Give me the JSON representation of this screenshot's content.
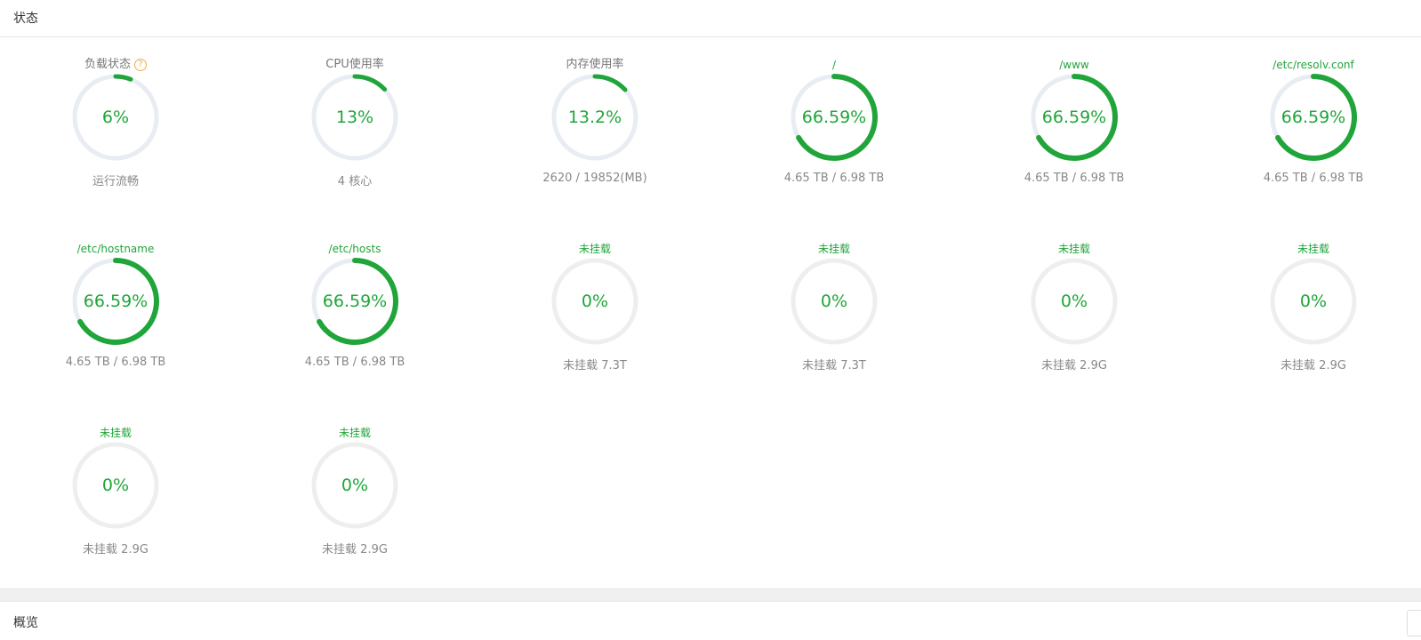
{
  "header": {
    "title": "状态"
  },
  "colors": {
    "accent": "#20a53a",
    "track_used": "#e8ecf3",
    "track_unmounted": "#eeeeee",
    "help": "#f0ad4e"
  },
  "help_icon": {
    "glyph": "?",
    "icon": "question-circle-icon"
  },
  "gauges": [
    {
      "name": "负载状态",
      "value_text": "6%",
      "percent": 6,
      "desc": "运行流畅",
      "style": "stat",
      "help": true
    },
    {
      "name": "CPU使用率",
      "value_text": "13%",
      "percent": 13,
      "desc": "4 核心",
      "style": "stat"
    },
    {
      "name": "内存使用率",
      "value_text": "13.2%",
      "percent": 13.2,
      "desc": "2620 / 19852(MB)",
      "style": "stat"
    },
    {
      "name": "/",
      "value_text": "66.59%",
      "percent": 66.59,
      "desc": "4.65 TB / 6.98 TB",
      "style": "disk"
    },
    {
      "name": "/www",
      "value_text": "66.59%",
      "percent": 66.59,
      "desc": "4.65 TB / 6.98 TB",
      "style": "disk"
    },
    {
      "name": "/etc/resolv.conf",
      "value_text": "66.59%",
      "percent": 66.59,
      "desc": "4.65 TB / 6.98 TB",
      "style": "disk"
    },
    {
      "name": "/etc/hostname",
      "value_text": "66.59%",
      "percent": 66.59,
      "desc": "4.65 TB / 6.98 TB",
      "style": "disk"
    },
    {
      "name": "/etc/hosts",
      "value_text": "66.59%",
      "percent": 66.59,
      "desc": "4.65 TB / 6.98 TB",
      "style": "disk"
    },
    {
      "name": "未挂载",
      "value_text": "0%",
      "percent": 0,
      "desc": "未挂载 7.3T",
      "style": "unmounted"
    },
    {
      "name": "未挂载",
      "value_text": "0%",
      "percent": 0,
      "desc": "未挂载 7.3T",
      "style": "unmounted"
    },
    {
      "name": "未挂载",
      "value_text": "0%",
      "percent": 0,
      "desc": "未挂载 2.9G",
      "style": "unmounted"
    },
    {
      "name": "未挂载",
      "value_text": "0%",
      "percent": 0,
      "desc": "未挂载 2.9G",
      "style": "unmounted"
    },
    {
      "name": "未挂载",
      "value_text": "0%",
      "percent": 0,
      "desc": "未挂载 2.9G",
      "style": "unmounted"
    },
    {
      "name": "未挂载",
      "value_text": "0%",
      "percent": 0,
      "desc": "未挂载 2.9G",
      "style": "unmounted"
    }
  ],
  "overview": {
    "title": "概览"
  }
}
